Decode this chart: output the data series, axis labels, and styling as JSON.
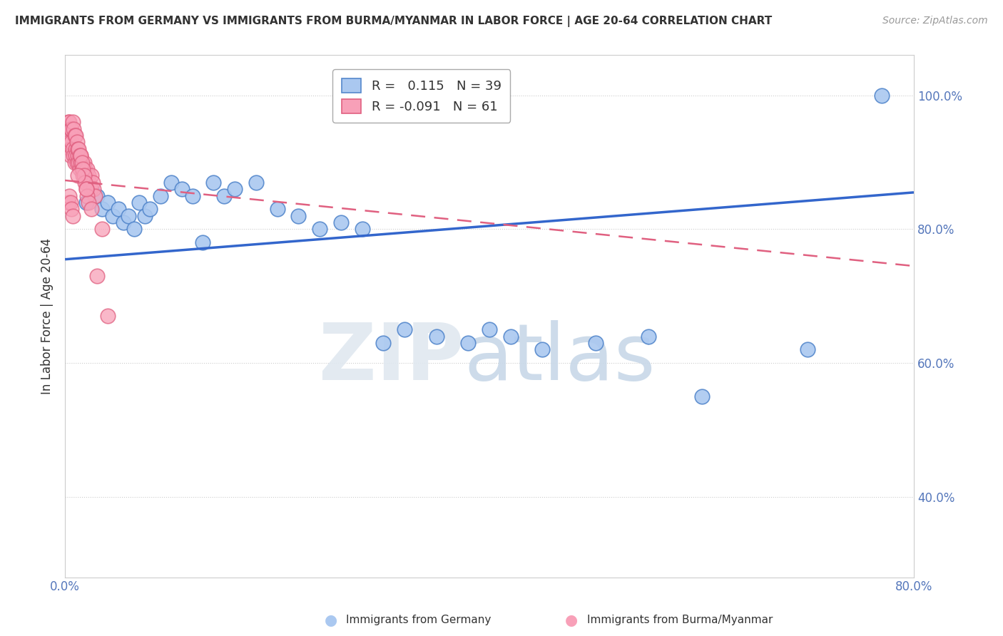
{
  "title": "IMMIGRANTS FROM GERMANY VS IMMIGRANTS FROM BURMA/MYANMAR IN LABOR FORCE | AGE 20-64 CORRELATION CHART",
  "source": "Source: ZipAtlas.com",
  "ylabel": "In Labor Force | Age 20-64",
  "xlim": [
    0.0,
    0.8
  ],
  "ylim": [
    0.28,
    1.06
  ],
  "germany_color": "#aac8f0",
  "germany_edge": "#5588cc",
  "burma_color": "#f8a0b8",
  "burma_edge": "#e06080",
  "germany_R": "0.115",
  "germany_N": "39",
  "burma_R": "-0.091",
  "burma_N": "61",
  "germany_scatter_x": [
    0.02,
    0.025,
    0.03,
    0.035,
    0.04,
    0.045,
    0.05,
    0.055,
    0.06,
    0.065,
    0.07,
    0.075,
    0.08,
    0.09,
    0.1,
    0.11,
    0.12,
    0.13,
    0.14,
    0.15,
    0.16,
    0.18,
    0.2,
    0.22,
    0.24,
    0.26,
    0.28,
    0.3,
    0.32,
    0.35,
    0.38,
    0.4,
    0.42,
    0.45,
    0.5,
    0.55,
    0.6,
    0.7,
    0.77
  ],
  "germany_scatter_y": [
    0.84,
    0.86,
    0.85,
    0.83,
    0.84,
    0.82,
    0.83,
    0.81,
    0.82,
    0.8,
    0.84,
    0.82,
    0.83,
    0.85,
    0.87,
    0.86,
    0.85,
    0.78,
    0.87,
    0.85,
    0.86,
    0.87,
    0.83,
    0.82,
    0.8,
    0.81,
    0.8,
    0.63,
    0.65,
    0.64,
    0.63,
    0.65,
    0.64,
    0.62,
    0.63,
    0.64,
    0.55,
    0.62,
    1.0
  ],
  "burma_scatter_x": [
    0.003,
    0.004,
    0.005,
    0.005,
    0.006,
    0.007,
    0.008,
    0.009,
    0.01,
    0.01,
    0.011,
    0.012,
    0.013,
    0.014,
    0.015,
    0.015,
    0.016,
    0.017,
    0.018,
    0.019,
    0.02,
    0.02,
    0.021,
    0.022,
    0.023,
    0.024,
    0.025,
    0.026,
    0.027,
    0.028,
    0.003,
    0.004,
    0.005,
    0.006,
    0.007,
    0.008,
    0.009,
    0.01,
    0.011,
    0.012,
    0.013,
    0.014,
    0.015,
    0.016,
    0.017,
    0.018,
    0.019,
    0.02,
    0.021,
    0.022,
    0.003,
    0.004,
    0.005,
    0.006,
    0.007,
    0.035,
    0.04,
    0.012,
    0.02,
    0.025,
    0.03
  ],
  "burma_scatter_y": [
    0.94,
    0.93,
    0.92,
    0.91,
    0.93,
    0.92,
    0.91,
    0.9,
    0.92,
    0.91,
    0.9,
    0.91,
    0.9,
    0.89,
    0.91,
    0.9,
    0.89,
    0.88,
    0.9,
    0.89,
    0.88,
    0.87,
    0.89,
    0.88,
    0.87,
    0.86,
    0.88,
    0.87,
    0.86,
    0.85,
    0.96,
    0.96,
    0.95,
    0.95,
    0.96,
    0.95,
    0.94,
    0.94,
    0.93,
    0.92,
    0.92,
    0.91,
    0.91,
    0.9,
    0.89,
    0.88,
    0.87,
    0.86,
    0.85,
    0.84,
    0.84,
    0.85,
    0.84,
    0.83,
    0.82,
    0.8,
    0.67,
    0.88,
    0.86,
    0.83,
    0.73
  ],
  "germany_line_x": [
    0.0,
    0.8
  ],
  "germany_line_y": [
    0.755,
    0.855
  ],
  "burma_line_x": [
    0.0,
    0.8
  ],
  "burma_line_y": [
    0.873,
    0.745
  ]
}
